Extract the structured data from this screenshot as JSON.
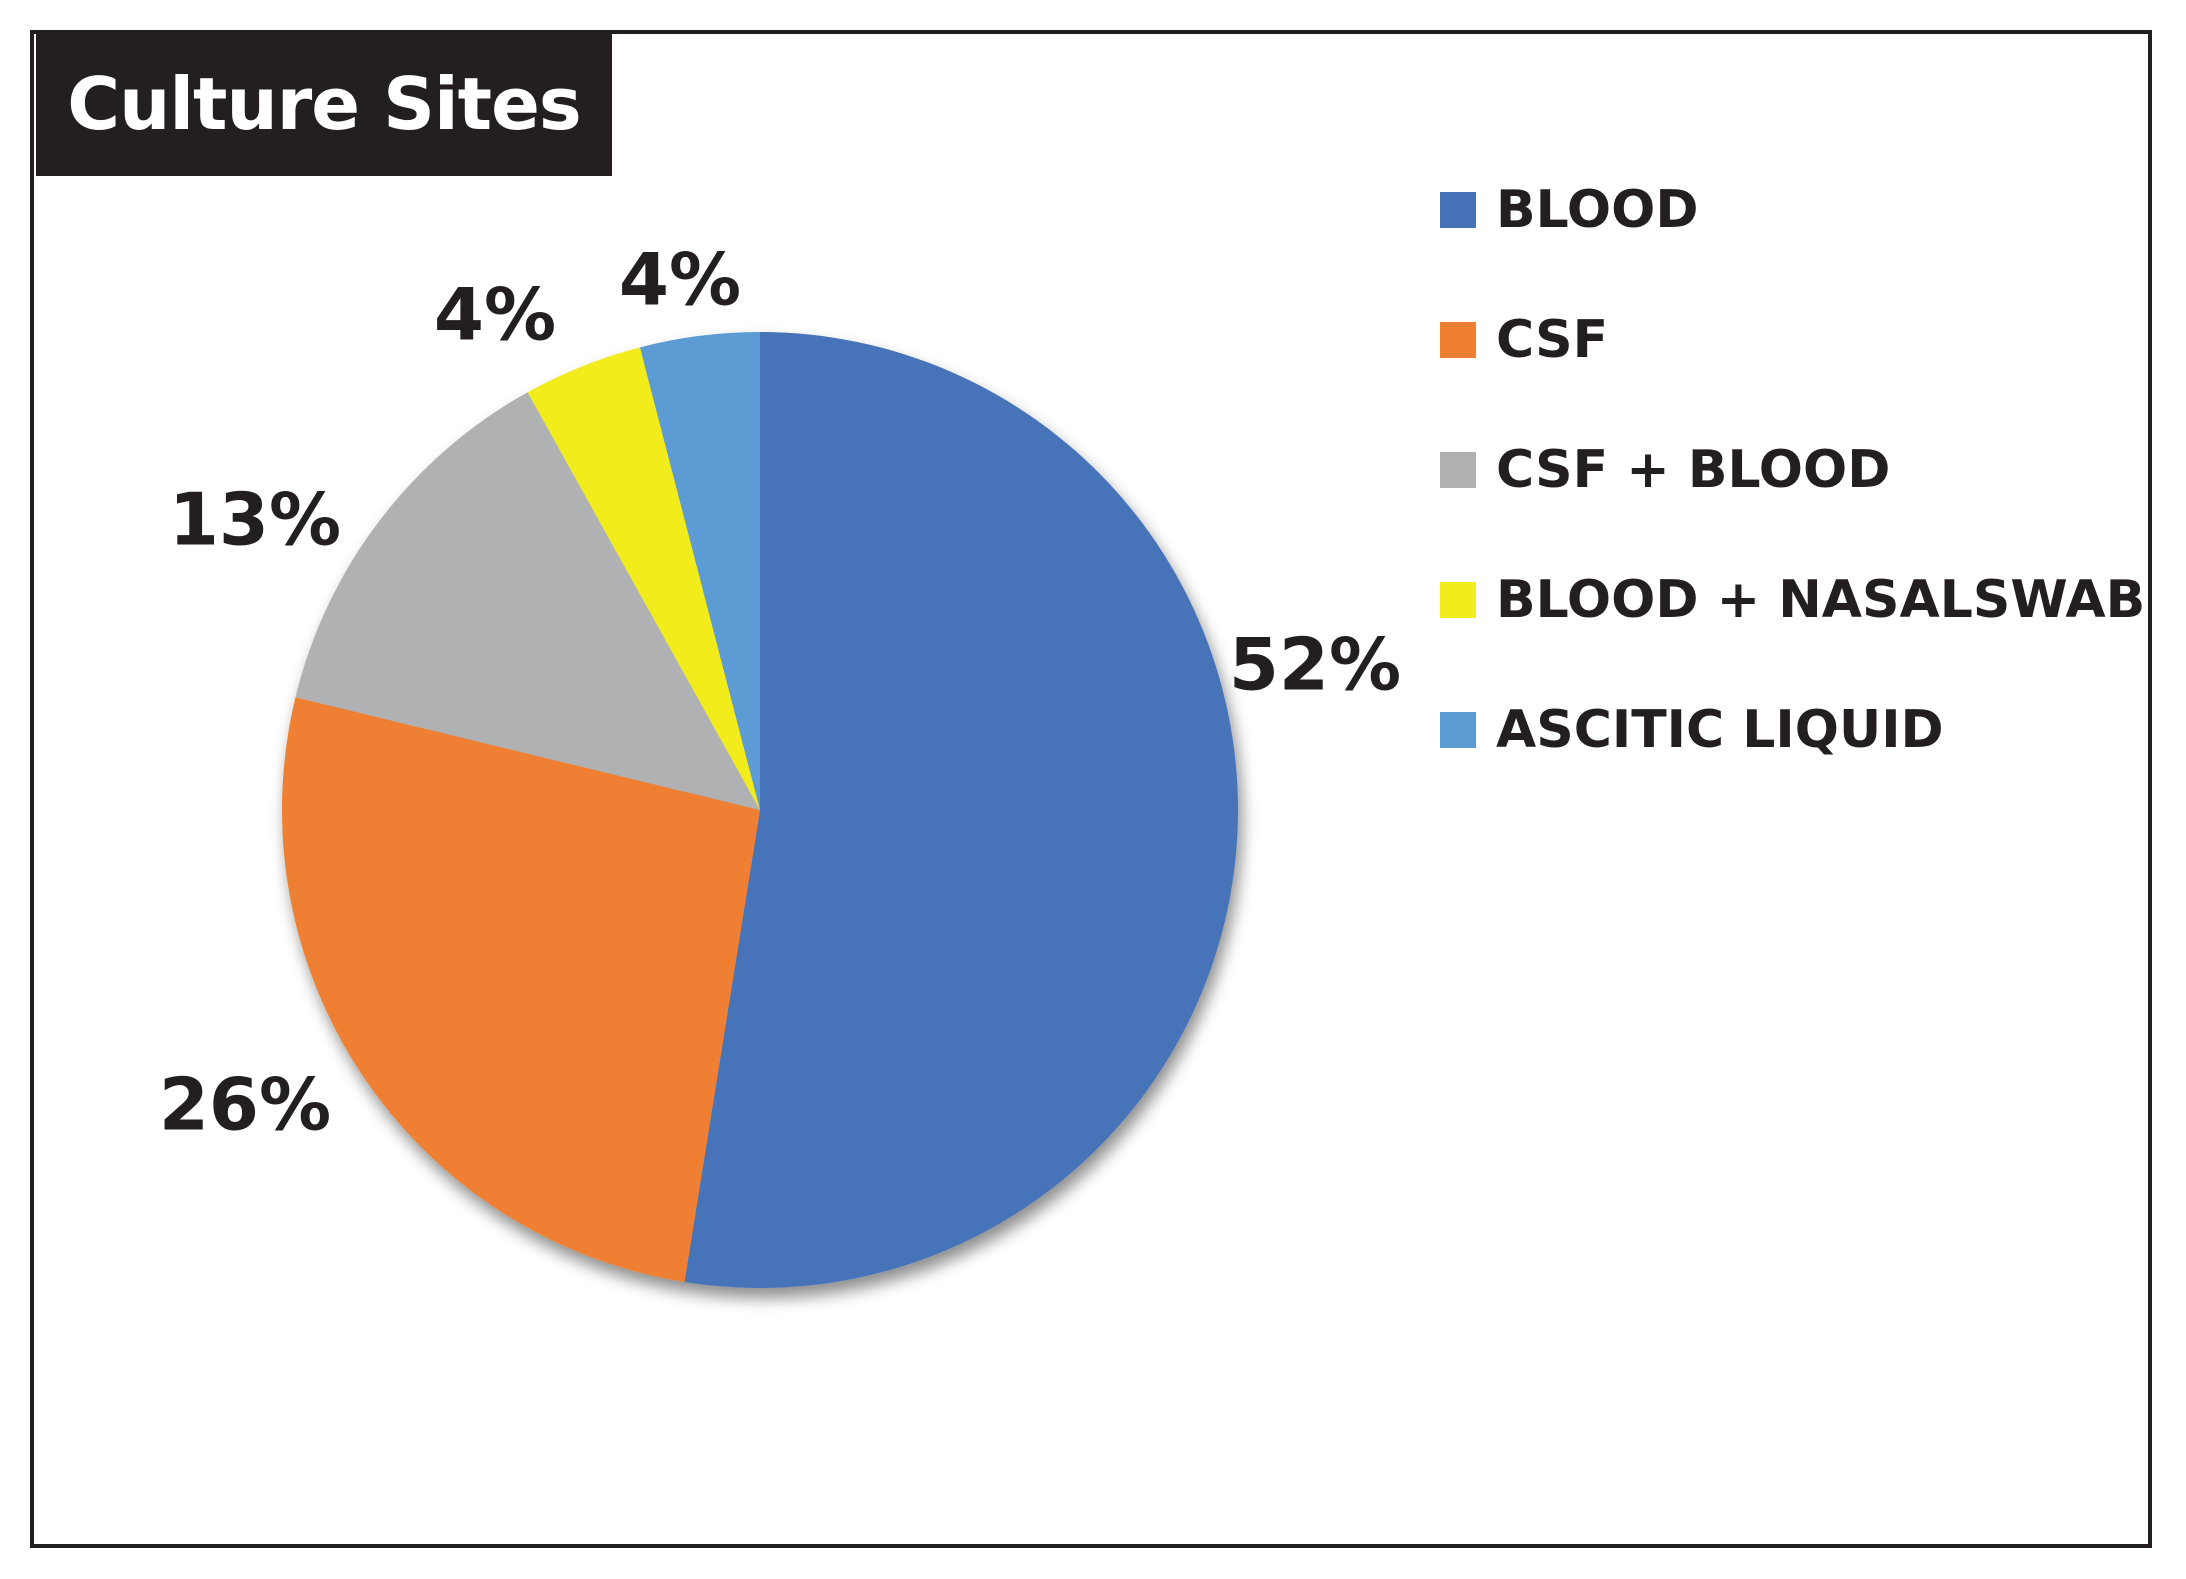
{
  "chart_data": {
    "type": "pie",
    "title": "Culture Sites",
    "categories": [
      "BLOOD",
      "CSF",
      "CSF + BLOOD",
      "BLOOD + NASALSWAB",
      "ASCITIC LIQUID"
    ],
    "values": [
      52,
      26,
      13,
      4,
      4
    ],
    "data_labels": [
      "52%",
      "26%",
      "13%",
      "4%",
      "4%"
    ],
    "colors": [
      "#4673b8",
      "#ef7f31",
      "#b0b1b3",
      "#f2ec1c",
      "#5b9bd3"
    ],
    "legend_placement": "right"
  }
}
